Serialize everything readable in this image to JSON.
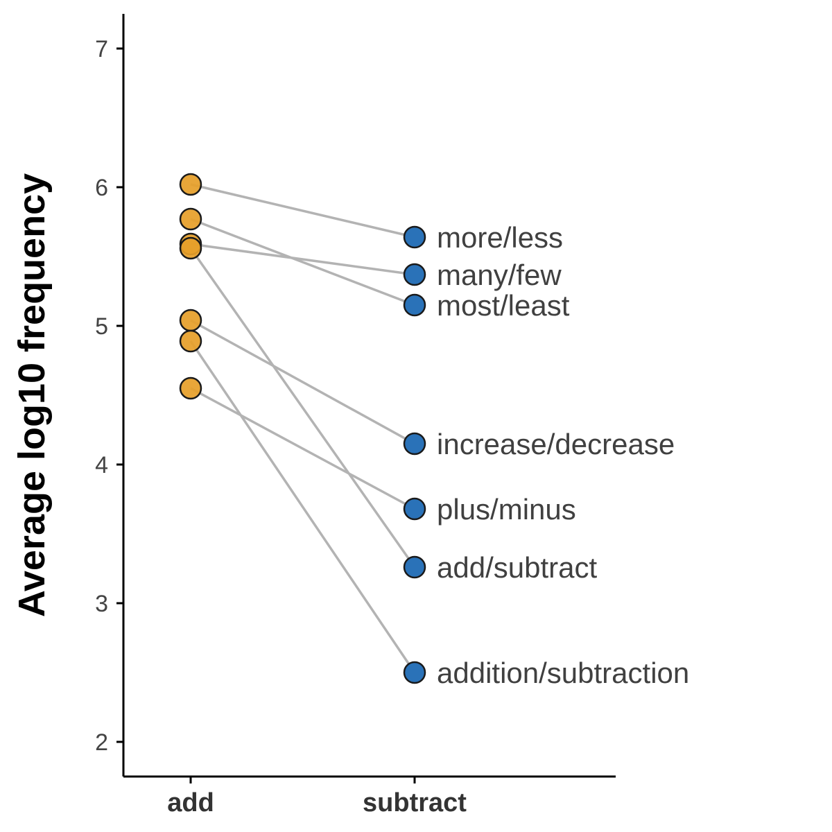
{
  "chart_data": {
    "type": "slope",
    "ylabel": "Average log10 frequency",
    "xlabel": "",
    "ylim": [
      1.75,
      7.25
    ],
    "yticks": [
      2,
      3,
      4,
      5,
      6,
      7
    ],
    "categories": [
      "add",
      "subtract"
    ],
    "grid": false,
    "colors": {
      "add": "#e69f2a",
      "subtract": "#2a72b8",
      "line": "#b3b3b3"
    },
    "pairs": [
      {
        "label": "more/less",
        "add": 6.02,
        "subtract": 5.64
      },
      {
        "label": "many/few",
        "add": 5.59,
        "subtract": 5.37
      },
      {
        "label": "most/least",
        "add": 5.77,
        "subtract": 5.15
      },
      {
        "label": "increase/decrease",
        "add": 5.04,
        "subtract": 4.15
      },
      {
        "label": "plus/minus",
        "add": 4.55,
        "subtract": 3.68
      },
      {
        "label": "add/subtract",
        "add": 5.56,
        "subtract": 3.26
      },
      {
        "label": "addition/subtraction",
        "add": 4.89,
        "subtract": 2.5
      }
    ]
  }
}
